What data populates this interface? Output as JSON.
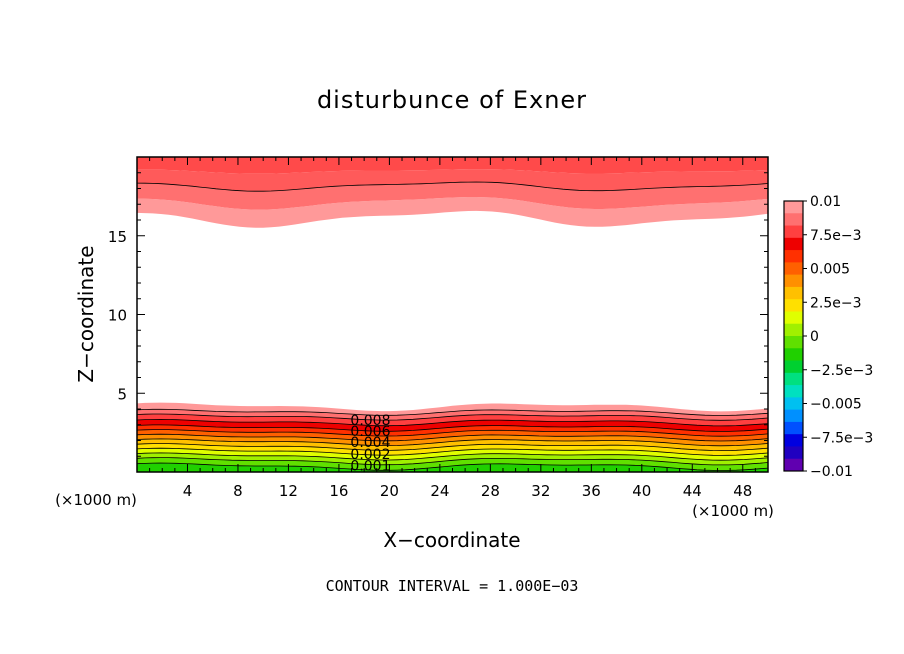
{
  "chart_data": {
    "type": "heatmap",
    "title": "disturbunce of Exner",
    "xlabel": "X−coordinate",
    "ylabel": "Z−coordinate",
    "x_unit": "(×1000 m)",
    "y_unit": "(×1000 m)",
    "footer": "CONTOUR INTERVAL = 1.000E−03",
    "xlim": [
      0,
      50
    ],
    "ylim": [
      0,
      20
    ],
    "x_ticks": [
      4,
      8,
      12,
      16,
      20,
      24,
      28,
      32,
      36,
      40,
      44,
      48
    ],
    "y_ticks": [
      5,
      10,
      15
    ],
    "colorbar": {
      "range": [
        -0.01,
        0.01
      ],
      "tick_labels": [
        "0.01",
        "7.5e−3",
        "0.005",
        "2.5e−3",
        "0",
        "−2.5e−3",
        "−0.005",
        "−7.5e−3",
        "−0.01"
      ],
      "colors_top_to_bottom": [
        "#ff9999",
        "#ff7070",
        "#ff4040",
        "#ee0000",
        "#ff3000",
        "#ff6000",
        "#ff9000",
        "#ffc000",
        "#ffe000",
        "#e0ff00",
        "#a0f000",
        "#60e000",
        "#20d000",
        "#00d030",
        "#00e080",
        "#00e0c0",
        "#00c0f0",
        "#0090ff",
        "#0050ff",
        "#0000e0",
        "#2000c0",
        "#6000b0"
      ]
    },
    "contour_labels": [
      "0.008",
      "0.006",
      "0.004",
      "0.002",
      "0.001"
    ],
    "contour_label_x": 18.5
  }
}
